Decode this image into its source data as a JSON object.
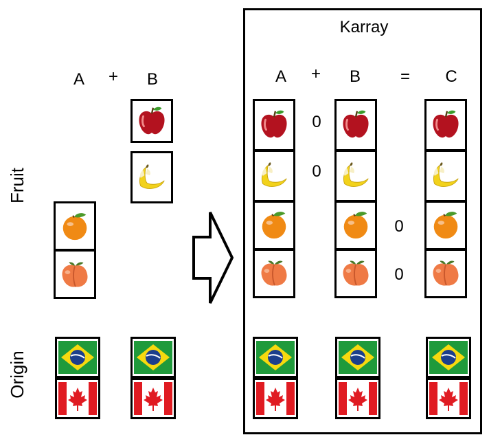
{
  "left": {
    "header": {
      "a": "A",
      "plus": "+",
      "b": "B"
    },
    "fruit_label": "Fruit",
    "origin_label": "Origin",
    "a_fruit": [
      "orange-icon",
      "peach-icon"
    ],
    "b_fruit": [
      "apple-icon",
      "banana-icon"
    ],
    "a_origin": [
      "brazil-flag-icon",
      "canada-flag-icon"
    ],
    "b_origin": [
      "brazil-flag-icon",
      "canada-flag-icon"
    ]
  },
  "karray": {
    "title": "Karray",
    "header": {
      "a": "A",
      "plus": "+",
      "b": "B",
      "eq": "=",
      "c": "C"
    },
    "a_fruit": [
      "apple-icon",
      "banana-icon",
      "orange-icon",
      "peach-icon"
    ],
    "a_fill": [
      "0",
      "0"
    ],
    "b_fruit": [
      "apple-icon",
      "banana-icon",
      "orange-icon",
      "peach-icon"
    ],
    "b_fill": [
      "0",
      "0"
    ],
    "c_fruit": [
      "apple-icon",
      "banana-icon",
      "orange-icon",
      "peach-icon"
    ],
    "origin": [
      "brazil-flag-icon",
      "canada-flag-icon"
    ]
  },
  "colors": {
    "apple": "#b3121f",
    "banana": "#f2d21b",
    "orange": "#f08a14",
    "peach": "#ef7a45",
    "brazil_green": "#1f9a3b",
    "brazil_yellow": "#f6d90f",
    "brazil_blue": "#1c3f8c",
    "canada_red": "#e01b22"
  }
}
